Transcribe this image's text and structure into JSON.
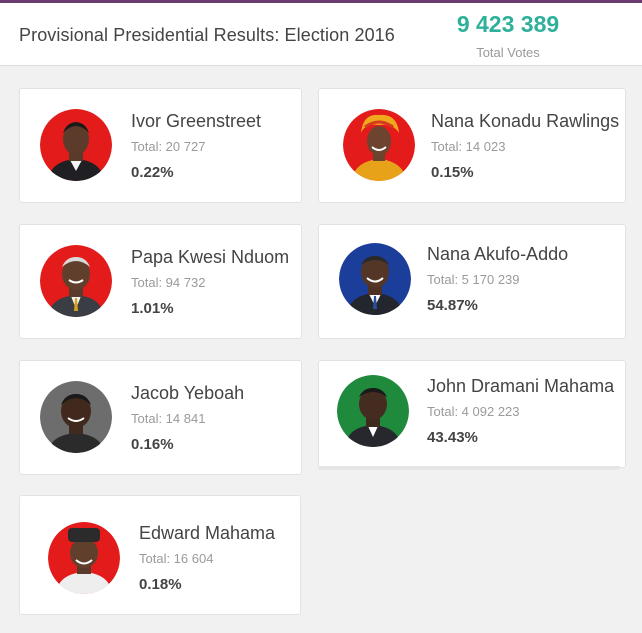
{
  "header": {
    "title": "Provisional Presidential Results: Election 2016",
    "total_votes": "9 423 389",
    "total_label": "Total Votes"
  },
  "candidates": [
    {
      "name": "Ivor Greenstreet",
      "total": "Total: 20 727",
      "percent": "0.22%",
      "percent_value": 0.22,
      "avatar_bg": "#e31b1b"
    },
    {
      "name": "Nana Konadu Rawlings",
      "total": "Total: 14 023",
      "percent": "0.15%",
      "percent_value": 0.15,
      "avatar_bg": "#e31b1b"
    },
    {
      "name": "Papa Kwesi Nduom",
      "total": "Total: 94 732",
      "percent": "1.01%",
      "percent_value": 1.01,
      "avatar_bg": "#e31b1b"
    },
    {
      "name": "Nana Akufo-Addo",
      "total": "Total: 5 170 239",
      "percent": "54.87%",
      "percent_value": 54.87,
      "avatar_bg": "#1c3e9b"
    },
    {
      "name": "Jacob Yeboah",
      "total": "Total: 14 841",
      "percent": "0.16%",
      "percent_value": 0.16,
      "avatar_bg": "#6d6d6d"
    },
    {
      "name": "John Dramani Mahama",
      "total": "Total: 4 092 223",
      "percent": "43.43%",
      "percent_value": 43.43,
      "avatar_bg": "#1f8a3c"
    },
    {
      "name": "Edward Mahama",
      "total": "Total: 16 604",
      "percent": "0.18%",
      "percent_value": 0.18,
      "avatar_bg": "#e31b1b"
    }
  ],
  "colors": {
    "accent": "#2eb09a",
    "top_bar": "#6b3a6e"
  }
}
